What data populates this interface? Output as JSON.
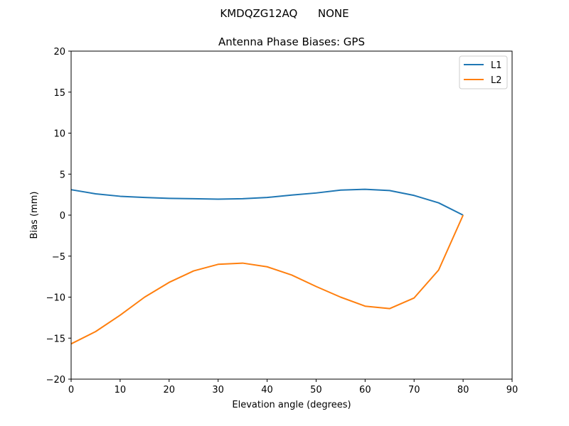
{
  "suptitle": "KMDQZG12AQ      NONE",
  "chart_data": {
    "type": "line",
    "title": "Antenna Phase Biases: GPS",
    "xlabel": "Elevation angle (degrees)",
    "ylabel": "Bias (mm)",
    "xlim": [
      0,
      90
    ],
    "ylim": [
      -20,
      20
    ],
    "xticks": [
      0,
      10,
      20,
      30,
      40,
      50,
      60,
      70,
      80,
      90
    ],
    "yticks": [
      -20,
      -15,
      -10,
      -5,
      0,
      5,
      10,
      15,
      20
    ],
    "grid": false,
    "legend_position": "top-right",
    "x": [
      0,
      5,
      10,
      15,
      20,
      25,
      30,
      35,
      40,
      45,
      50,
      55,
      60,
      65,
      70,
      75,
      80
    ],
    "series": [
      {
        "name": "L1",
        "color": "#1f77b4",
        "values": [
          3.1,
          2.6,
          2.3,
          2.15,
          2.05,
          2.0,
          1.95,
          2.0,
          2.15,
          2.45,
          2.7,
          3.05,
          3.15,
          3.0,
          2.4,
          1.5,
          0.0
        ]
      },
      {
        "name": "L2",
        "color": "#ff7f0e",
        "values": [
          -15.7,
          -14.2,
          -12.2,
          -10.0,
          -8.2,
          -6.8,
          -6.0,
          -5.85,
          -6.3,
          -7.3,
          -8.7,
          -10.0,
          -11.1,
          -11.4,
          -10.1,
          -6.7,
          0.0
        ]
      }
    ]
  }
}
